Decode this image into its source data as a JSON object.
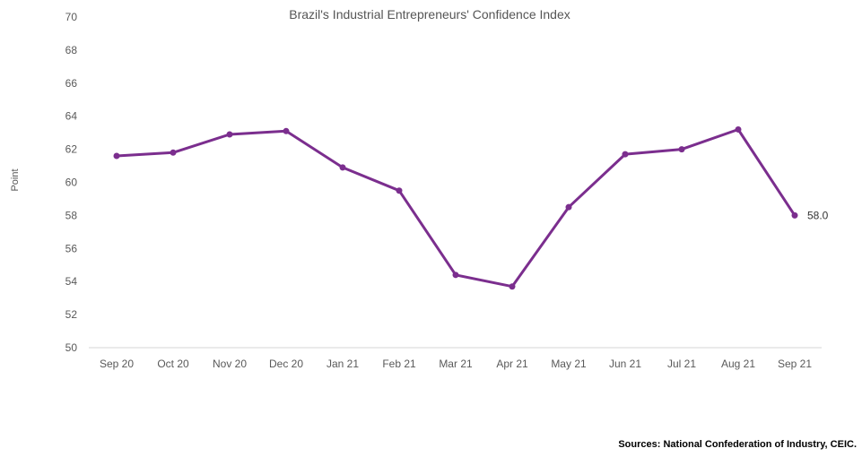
{
  "chart_data": {
    "type": "line",
    "title": "Brazil's Industrial Entrepreneurs' Confidence Index",
    "ylabel": "Point",
    "xlabel": "",
    "categories": [
      "Sep 20",
      "Oct 20",
      "Nov 20",
      "Dec 20",
      "Jan 21",
      "Feb 21",
      "Mar 21",
      "Apr 21",
      "May 21",
      "Jun 21",
      "Jul 21",
      "Aug 21",
      "Sep 21"
    ],
    "series": [
      {
        "values": [
          61.6,
          61.8,
          62.9,
          63.1,
          60.9,
          59.5,
          54.4,
          53.7,
          58.5,
          61.7,
          62.0,
          63.2,
          58.0
        ]
      }
    ],
    "ylim": [
      50,
      70
    ],
    "yticks": [
      50,
      52,
      54,
      56,
      58,
      60,
      62,
      64,
      66,
      68,
      70
    ],
    "grid": false,
    "last_point_label": "58.0",
    "line_color": "#7b2e8e"
  },
  "source_text": "Sources: National Confederation of Industry, CEIC."
}
